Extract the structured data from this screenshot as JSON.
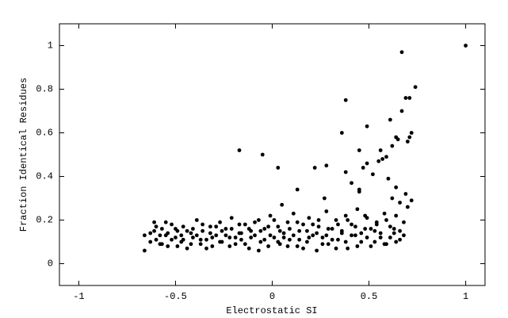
{
  "chart_data": {
    "type": "scatter",
    "x_label": "Electrostatic SI",
    "y_label": "Fraction Identical Residues",
    "xlim": [
      -1.1,
      1.1
    ],
    "ylim": [
      -0.1,
      1.1
    ],
    "xticks": [
      -1,
      -0.5,
      0,
      0.5,
      1
    ],
    "yticks": [
      0,
      0.2,
      0.4,
      0.6,
      0.8,
      1
    ],
    "color": "#000000",
    "x": [
      -0.66,
      -0.63,
      -0.61,
      -0.6,
      -0.58,
      -0.57,
      -0.55,
      -0.54,
      -0.52,
      -0.5,
      -0.49,
      -0.47,
      -0.46,
      -0.44,
      -0.42,
      -0.41,
      -0.39,
      -0.37,
      -0.36,
      -0.34,
      -0.32,
      -0.31,
      -0.29,
      -0.27,
      -0.26,
      -0.24,
      -0.22,
      -0.21,
      -0.19,
      -0.17,
      -0.16,
      -0.14,
      -0.12,
      -0.11,
      -0.09,
      -0.07,
      -0.06,
      -0.04,
      -0.02,
      -0.01,
      0.01,
      0.03,
      0.04,
      0.06,
      0.08,
      0.09,
      0.11,
      0.13,
      0.14,
      0.16,
      0.18,
      0.19,
      0.21,
      0.23,
      0.24,
      0.26,
      0.28,
      0.29,
      0.31,
      0.33,
      0.34,
      0.36,
      0.38,
      0.39,
      0.41,
      0.43,
      0.44,
      0.46,
      0.48,
      0.49,
      0.51,
      0.53,
      0.54,
      0.56,
      0.58,
      0.59,
      0.61,
      0.63,
      0.64,
      0.66,
      0.68,
      -0.66,
      -0.63,
      -0.61,
      -0.6,
      -0.58,
      -0.57,
      -0.55,
      -0.54,
      -0.52,
      -0.5,
      -0.49,
      -0.47,
      -0.46,
      -0.44,
      -0.42,
      -0.41,
      -0.39,
      -0.37,
      -0.36,
      -0.34,
      -0.32,
      -0.31,
      -0.29,
      -0.27,
      -0.26,
      -0.24,
      -0.22,
      -0.21,
      -0.19,
      -0.17,
      -0.16,
      -0.14,
      -0.12,
      -0.11,
      -0.09,
      -0.07,
      -0.06,
      -0.04,
      -0.02,
      -0.01,
      0.01,
      0.03,
      0.04,
      0.06,
      0.08,
      0.09,
      0.11,
      0.13,
      0.14,
      0.16,
      0.18,
      0.19,
      0.21,
      0.23,
      0.24,
      0.26,
      0.28,
      0.29,
      0.31,
      0.33,
      0.34,
      0.36,
      0.38,
      0.39,
      0.41,
      0.43,
      0.44,
      0.46,
      0.48,
      0.49,
      0.51,
      0.53,
      0.54,
      0.56,
      0.58,
      0.59,
      0.61,
      0.63,
      0.64,
      0.66,
      0.68,
      1.0,
      0.67,
      0.74,
      0.38,
      0.69,
      0.71,
      0.67,
      0.36,
      0.49,
      0.61,
      0.72,
      0.71,
      0.64,
      0.65,
      0.7,
      0.62,
      0.56,
      0.45,
      -0.17,
      -0.05,
      0.03,
      0.22,
      0.28,
      0.38,
      0.49,
      0.47,
      0.55,
      0.57,
      0.59,
      0.41,
      0.45,
      0.6,
      0.52,
      0.13,
      0.64,
      0.69,
      0.62,
      0.45,
      0.66,
      0.72,
      0.7,
      0.05,
      0.27
    ],
    "values": [
      0.06,
      0.14,
      0.19,
      0.11,
      0.09,
      0.16,
      0.13,
      0.08,
      0.18,
      0.12,
      0.15,
      0.1,
      0.17,
      0.07,
      0.14,
      0.12,
      0.2,
      0.09,
      0.15,
      0.11,
      0.17,
      0.08,
      0.13,
      0.19,
      0.1,
      0.16,
      0.12,
      0.21,
      0.09,
      0.14,
      0.11,
      0.18,
      0.07,
      0.15,
      0.13,
      0.2,
      0.1,
      0.16,
      0.08,
      0.22,
      0.12,
      0.17,
      0.09,
      0.14,
      0.19,
      0.11,
      0.23,
      0.08,
      0.15,
      0.18,
      0.1,
      0.21,
      0.13,
      0.06,
      0.17,
      0.12,
      0.24,
      0.09,
      0.16,
      0.2,
      0.11,
      0.14,
      0.22,
      0.07,
      0.18,
      0.13,
      0.25,
      0.1,
      0.16,
      0.21,
      0.08,
      0.15,
      0.19,
      0.12,
      0.23,
      0.09,
      0.17,
      0.14,
      0.22,
      0.11,
      0.19,
      0.13,
      0.1,
      0.15,
      0.17,
      0.13,
      0.09,
      0.19,
      0.14,
      0.11,
      0.16,
      0.08,
      0.13,
      0.11,
      0.15,
      0.09,
      0.16,
      0.13,
      0.11,
      0.18,
      0.07,
      0.14,
      0.12,
      0.17,
      0.1,
      0.15,
      0.13,
      0.08,
      0.16,
      0.12,
      0.18,
      0.14,
      0.09,
      0.16,
      0.12,
      0.19,
      0.06,
      0.15,
      0.11,
      0.17,
      0.13,
      0.2,
      0.1,
      0.15,
      0.12,
      0.08,
      0.16,
      0.13,
      0.19,
      0.11,
      0.07,
      0.15,
      0.12,
      0.18,
      0.14,
      0.2,
      0.09,
      0.13,
      0.16,
      0.11,
      0.07,
      0.18,
      0.15,
      0.1,
      0.2,
      0.13,
      0.17,
      0.08,
      0.14,
      0.22,
      0.12,
      0.16,
      0.1,
      0.18,
      0.14,
      0.09,
      0.2,
      0.12,
      0.16,
      0.1,
      0.15,
      0.13,
      1.0,
      0.97,
      0.81,
      0.75,
      0.76,
      0.76,
      0.7,
      0.6,
      0.63,
      0.66,
      0.6,
      0.58,
      0.58,
      0.57,
      0.56,
      0.54,
      0.52,
      0.52,
      0.52,
      0.5,
      0.44,
      0.44,
      0.45,
      0.42,
      0.46,
      0.44,
      0.47,
      0.48,
      0.49,
      0.37,
      0.34,
      0.39,
      0.41,
      0.34,
      0.35,
      0.32,
      0.3,
      0.33,
      0.28,
      0.29,
      0.26,
      0.27,
      0.3
    ]
  }
}
